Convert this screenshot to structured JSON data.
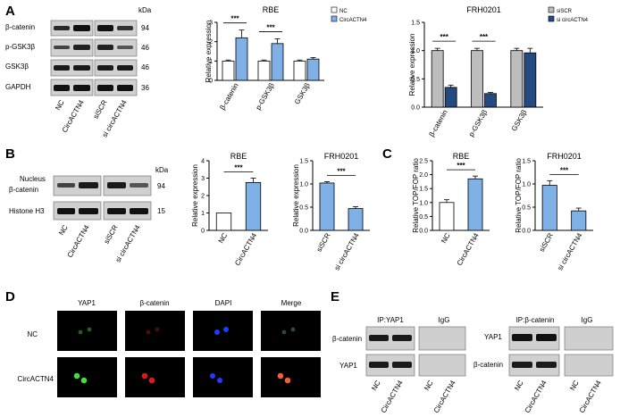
{
  "colors": {
    "white": "#ffffff",
    "light_blue": "#7fb0e6",
    "grey": "#bdbdbd",
    "navy": "#254a80",
    "blot_bg": "#d0d0d0",
    "band": "#1c1c1c",
    "micro_bg": "#000000"
  },
  "panel_letters": {
    "A": "A",
    "B": "B",
    "C": "C",
    "D": "D",
    "E": "E"
  },
  "panelA_blot": {
    "kda_label": "kDa",
    "rows": [
      {
        "label": "β-catenin",
        "kda": "94"
      },
      {
        "label": "p-GSK3β",
        "kda": "46"
      },
      {
        "label": "GSK3β",
        "kda": "46"
      },
      {
        "label": "GAPDH",
        "kda": "36"
      }
    ],
    "lanes": [
      "NC",
      "CircACTN4",
      "siSCR",
      "si circACTN4"
    ]
  },
  "panelB_blot": {
    "kda_label": "kDa",
    "rows": [
      {
        "label1": "Nucleus",
        "label2": "β-catenin",
        "kda": "94"
      },
      {
        "label1": "",
        "label2": "Histone H3",
        "kda": "15"
      }
    ],
    "lanes": [
      "NC",
      "CircACTN4",
      "siSCR",
      "si circACTN4"
    ]
  },
  "panelD": {
    "columns": [
      "YAP1",
      "β-catenin",
      "DAPI",
      "Merge"
    ],
    "rows": [
      "NC",
      "CircACTN4"
    ]
  },
  "panelE": {
    "left": {
      "ip_label": "IP:YAP1",
      "igg_label": "IgG",
      "rows": [
        "β-catenin",
        "YAP1"
      ],
      "lanes": [
        "NC",
        "CircACTN4",
        "NC",
        "CircACTN4"
      ]
    },
    "right": {
      "ip_label": "IP:β-catenin",
      "igg_label": "IgG",
      "rows": [
        "YAP1",
        "β-catenin"
      ],
      "lanes": [
        "NC",
        "CircACTN4",
        "NC",
        "CircACTN4"
      ]
    }
  },
  "chart_data": [
    {
      "type": "bar",
      "title": "RBE",
      "ylabel": "Relative expression",
      "categories": [
        "β-catenin",
        "p-GSK3β",
        "GSK3β"
      ],
      "series": [
        {
          "name": "NC",
          "values": [
            1.0,
            1.0,
            1.0
          ],
          "errors": [
            0.05,
            0.05,
            0.05
          ],
          "color": "#ffffff"
        },
        {
          "name": "CircACTN4",
          "values": [
            2.2,
            1.9,
            1.1
          ],
          "errors": [
            0.4,
            0.25,
            0.08
          ],
          "color": "#7fb0e6"
        }
      ],
      "ylim": [
        0,
        3
      ],
      "yticks": [
        "0",
        "1",
        "2",
        "3"
      ],
      "significance": [
        "***",
        "***",
        ""
      ],
      "legend": "top-right"
    },
    {
      "type": "bar",
      "title": "FRH0201",
      "ylabel": "Relative expression",
      "categories": [
        "β-catenin",
        "p-GSK3β",
        "GSK3β"
      ],
      "series": [
        {
          "name": "siSCR",
          "values": [
            1.0,
            1.0,
            1.0
          ],
          "errors": [
            0.04,
            0.04,
            0.04
          ],
          "color": "#bdbdbd"
        },
        {
          "name": "si circACTN4",
          "values": [
            0.35,
            0.24,
            0.96
          ],
          "errors": [
            0.04,
            0.02,
            0.08
          ],
          "color": "#254a80"
        }
      ],
      "ylim": [
        0,
        1.5
      ],
      "yticks": [
        "0.0",
        "0.5",
        "1.0",
        "1.5"
      ],
      "significance": [
        "***",
        "***",
        ""
      ],
      "legend": "top-right"
    },
    {
      "type": "bar",
      "title": "RBE",
      "ylabel": "Relative expression",
      "categories": [
        "NC",
        "CircACTN4"
      ],
      "values": [
        1.0,
        2.75
      ],
      "errors": [
        0,
        0.25
      ],
      "colors": [
        "#ffffff",
        "#7fb0e6"
      ],
      "ylim": [
        0,
        4
      ],
      "yticks": [
        "0",
        "1",
        "2",
        "3",
        "4"
      ],
      "significance": "***"
    },
    {
      "type": "bar",
      "title": "FRH0201",
      "ylabel": "Relative expression",
      "categories": [
        "siSCR",
        "si circACTN4"
      ],
      "values": [
        1.02,
        0.47
      ],
      "errors": [
        0.03,
        0.04
      ],
      "colors": [
        "#7fb0e6",
        "#7fb0e6"
      ],
      "ylim": [
        0,
        1.5
      ],
      "yticks": [
        "0.0",
        "0.5",
        "1.0",
        "1.5"
      ],
      "significance": "***"
    },
    {
      "type": "bar",
      "title": "RBE",
      "ylabel": "Relative TOP/FOP ratio",
      "categories": [
        "NC",
        "CircACTN4"
      ],
      "values": [
        1.0,
        1.85
      ],
      "errors": [
        0.1,
        0.1
      ],
      "colors": [
        "#ffffff",
        "#7fb0e6"
      ],
      "ylim": [
        0,
        2.5
      ],
      "yticks": [
        "0.0",
        "0.5",
        "1.0",
        "1.5",
        "2.0",
        "2.5"
      ],
      "significance": "***"
    },
    {
      "type": "bar",
      "title": "FRH0201",
      "ylabel": "Relative TOP/FOP ratio",
      "categories": [
        "siSCR",
        "si circACTN4"
      ],
      "values": [
        0.97,
        0.42
      ],
      "errors": [
        0.1,
        0.06
      ],
      "colors": [
        "#7fb0e6",
        "#7fb0e6"
      ],
      "ylim": [
        0,
        1.5
      ],
      "yticks": [
        "0.0",
        "0.5",
        "1.0",
        "1.5"
      ],
      "significance": "***"
    }
  ]
}
